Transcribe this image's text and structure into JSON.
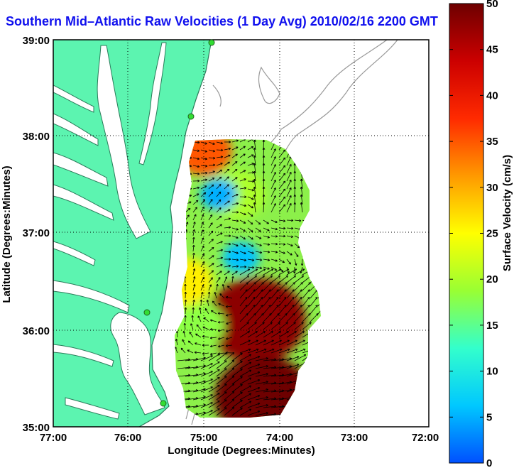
{
  "title": "Southern Mid–Atlantic Raw Velocities (1 Day Avg) 2010/02/16 2200 GMT",
  "xlabel": "Longitude (Degrees:Minutes)",
  "ylabel": "Latitude (Degrees:Minutes)",
  "x_ticks": [
    "77:00",
    "76:00",
    "75:00",
    "74:00",
    "73:00",
    "72:00"
  ],
  "y_ticks": [
    "39:00",
    "38:00",
    "37:00",
    "36:00",
    "35:00"
  ],
  "colorbar": {
    "label": "Surface Velocity (cm/s)",
    "ticks": [
      "50",
      "45",
      "40",
      "35",
      "30",
      "25",
      "20",
      "15",
      "10",
      "5",
      "0"
    ],
    "range": [
      0,
      50
    ],
    "colors": [
      "#0050ff",
      "#00c8ff",
      "#33ffcc",
      "#99ff33",
      "#ffff00",
      "#ff9900",
      "#ff2a00",
      "#cc0000",
      "#6e0000"
    ]
  },
  "chart_data": {
    "type": "heatmap",
    "title": "Southern Mid–Atlantic Raw Velocities (1 Day Avg) 2010/02/16 2200 GMT",
    "xlabel": "Longitude (Degrees:Minutes)",
    "ylabel": "Latitude (Degrees:Minutes)",
    "xlim": [
      -77,
      -72
    ],
    "ylim": [
      35,
      39
    ],
    "grid": true,
    "colorbar_label": "Surface Velocity (cm/s)",
    "colorbar_range": [
      0,
      50
    ],
    "field": [
      {
        "lon": -75.0,
        "lat": 37.85,
        "speed": 35
      },
      {
        "lon": -74.55,
        "lat": 37.4,
        "speed": 20
      },
      {
        "lon": -74.5,
        "lat": 36.75,
        "speed": 6
      },
      {
        "lon": -74.3,
        "lat": 36.1,
        "speed": 48
      },
      {
        "lon": -74.2,
        "lat": 35.3,
        "speed": 50
      },
      {
        "lon": -74.8,
        "lat": 37.4,
        "speed": 5
      },
      {
        "lon": -75.1,
        "lat": 36.05,
        "speed": 18
      },
      {
        "lon": -75.25,
        "lat": 36.5,
        "speed": 26
      }
    ]
  }
}
